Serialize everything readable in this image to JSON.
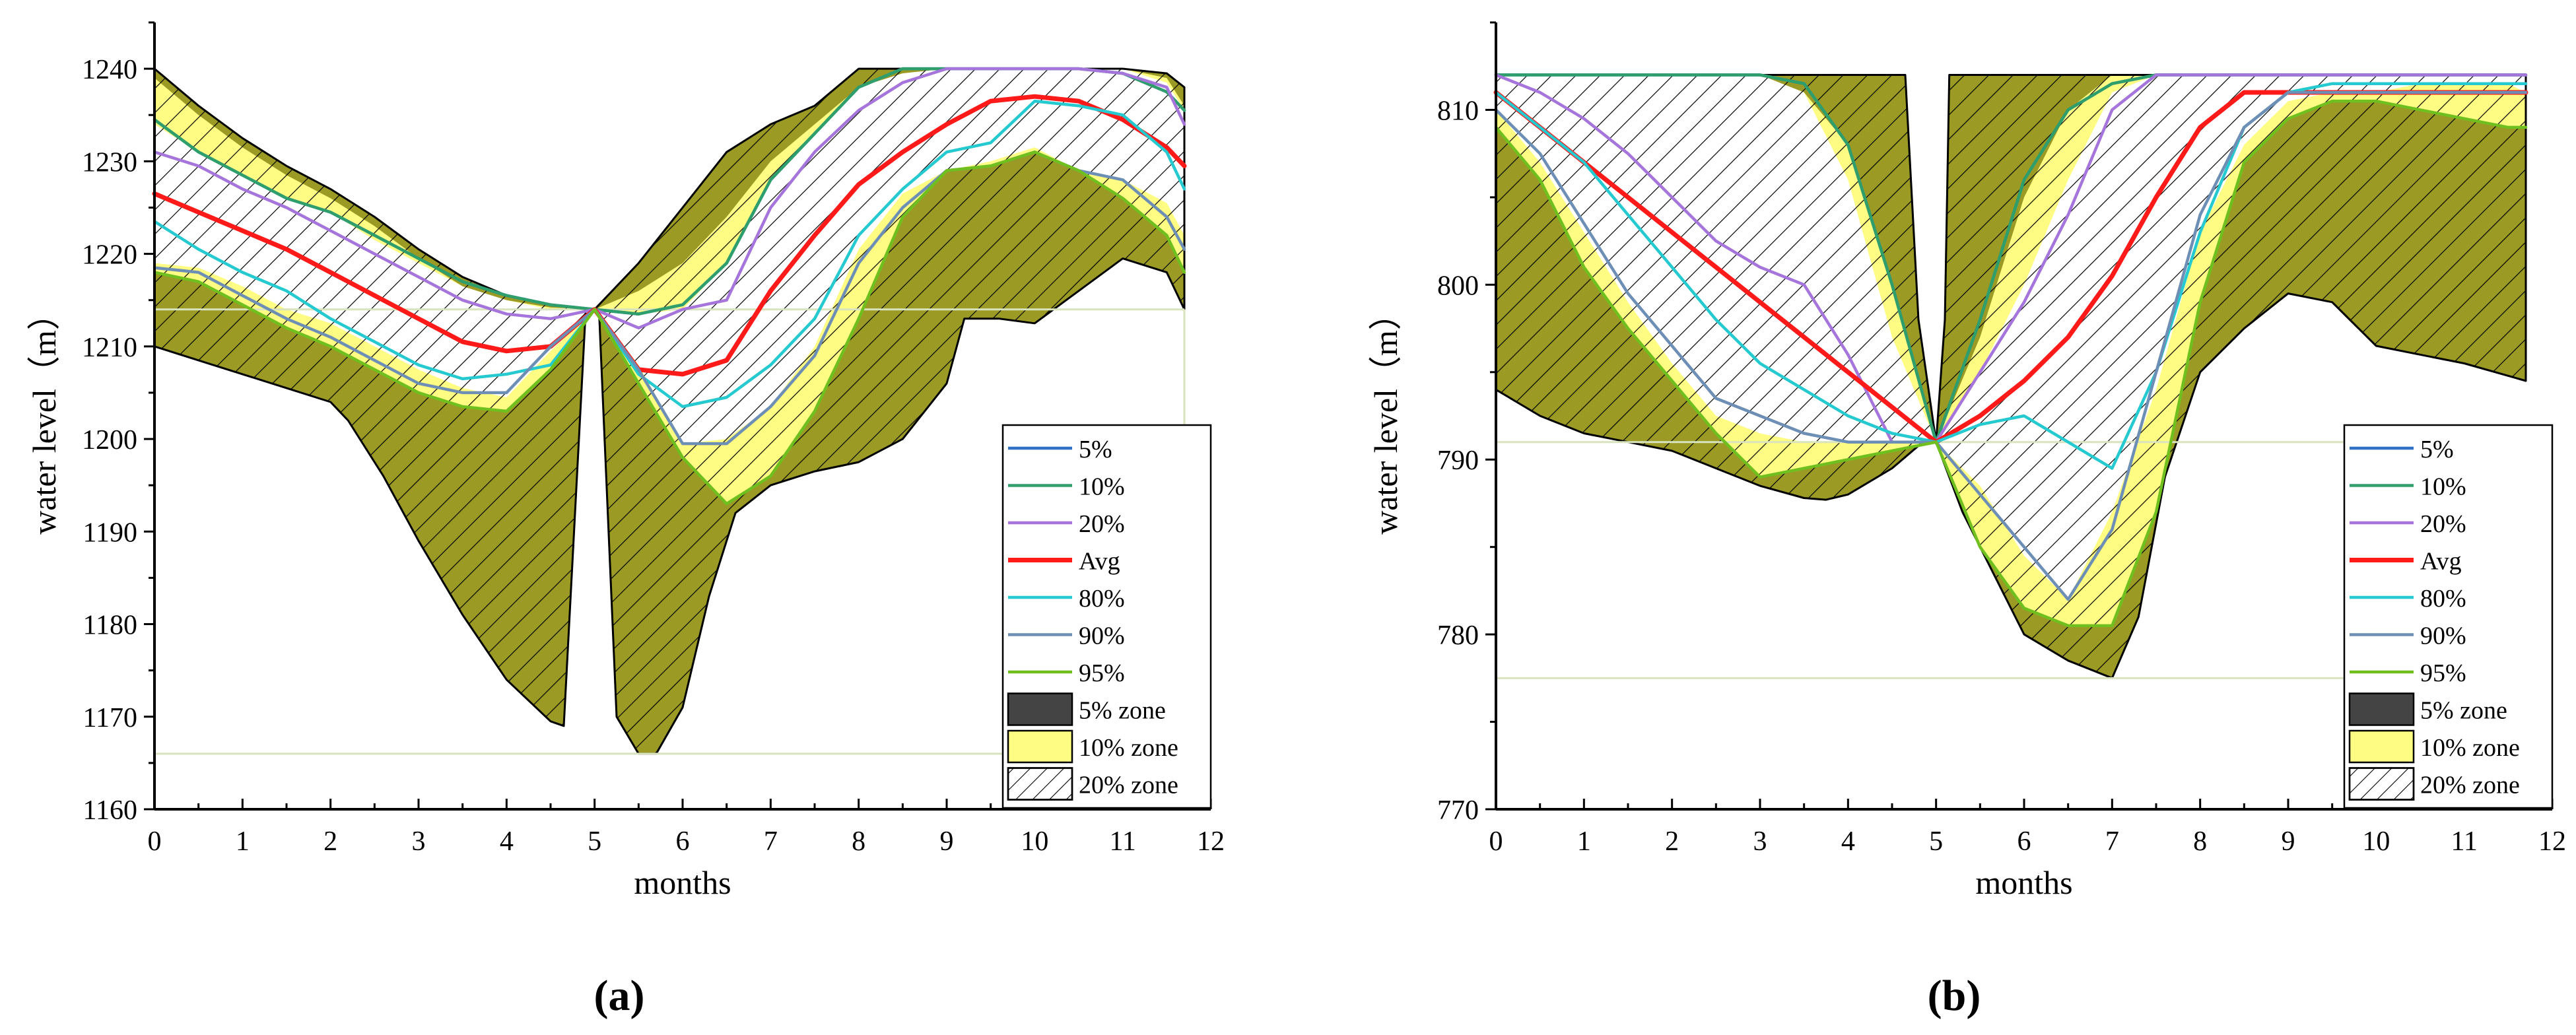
{
  "figure": {
    "panel_labels": [
      "(a)",
      "(b)"
    ]
  },
  "colors": {
    "p5": "#2f6fc4",
    "p10": "#2e9e6b",
    "p20": "#a675dc",
    "avg": "#ff1a1a",
    "p80": "#25c9d0",
    "p90": "#6e8fb5",
    "p95": "#6fbf1f",
    "zone5": "#9a9a25",
    "zone10": "#fefc82",
    "zone20": "#ffffff",
    "guide": "#d9e3bd"
  },
  "chart_data": [
    {
      "type": "line",
      "panel": "(a)",
      "xlabel": "months",
      "ylabel": "water level（m）",
      "xlim": [
        0,
        12
      ],
      "ylim": [
        1160,
        1245
      ],
      "xticks": [
        "0",
        "1",
        "2",
        "3",
        "4",
        "5",
        "6",
        "7",
        "8",
        "9",
        "10",
        "11",
        "12"
      ],
      "yticks": [
        "1160",
        "1170",
        "1180",
        "1190",
        "1200",
        "1210",
        "1220",
        "1230",
        "1240"
      ],
      "x": [
        0,
        0.5,
        1,
        1.5,
        2,
        2.5,
        3,
        3.5,
        4,
        4.5,
        5,
        5.5,
        6,
        6.5,
        7,
        7.5,
        8,
        8.5,
        9,
        9.5,
        10,
        10.5,
        11,
        11.5,
        11.7
      ],
      "zone5": {
        "upper_x": [
          0,
          0.5,
          1,
          1.5,
          2,
          2.5,
          3,
          3.5,
          4,
          4.5,
          5,
          5.5,
          6,
          6.5,
          7,
          7.5,
          8,
          8.5,
          9,
          9.5,
          10,
          10.5,
          11,
          11.5,
          11.7
        ],
        "upper_y": [
          1240,
          1236,
          1232.5,
          1229.5,
          1227,
          1224,
          1220.5,
          1217.5,
          1215.5,
          1214.5,
          1214,
          1219,
          1225,
          1231,
          1234,
          1236,
          1240,
          1240,
          1240,
          1240,
          1240,
          1240,
          1240,
          1239.5,
          1238
        ],
        "lower_x": [
          0,
          0.5,
          1,
          1.5,
          2,
          2.2,
          2.6,
          3,
          3.5,
          4,
          4.5,
          4.65,
          4.9,
          5.05,
          5.25,
          5.5,
          5.7,
          6,
          6.3,
          6.6,
          7,
          7.5,
          8,
          8.5,
          9,
          9.2,
          9.6,
          10,
          10.5,
          11,
          11.5,
          11.7
        ],
        "lower_y": [
          1210,
          1208.5,
          1207,
          1205.5,
          1204,
          1202,
          1196,
          1189,
          1181,
          1174,
          1169.5,
          1169,
          1214,
          1214,
          1170,
          1166,
          1166,
          1171,
          1183,
          1192,
          1195,
          1196.5,
          1197.5,
          1200,
          1206,
          1213,
          1213,
          1212.5,
          1216,
          1219.5,
          1218,
          1214
        ]
      },
      "zone10": {
        "upper": [
          1239,
          1235,
          1231.5,
          1228.5,
          1226,
          1223,
          1219.5,
          1216.5,
          1215,
          1214.2,
          1214,
          1216,
          1219,
          1224,
          1230,
          1234,
          1238,
          1239.5,
          1240,
          1240,
          1240,
          1240,
          1240,
          1239,
          1236
        ],
        "lower": [
          1218,
          1217,
          1214.5,
          1212,
          1210,
          1207.5,
          1205,
          1203.5,
          1203,
          1207.5,
          1214,
          1206,
          1198,
          1193,
          1196,
          1203,
          1213,
          1224,
          1229,
          1229.5,
          1231,
          1229,
          1226,
          1222,
          1218
        ]
      },
      "zone20": {
        "upper": [
          1234,
          1231,
          1228.5,
          1226,
          1224.5,
          1221.5,
          1219,
          1216.5,
          1215,
          1214,
          1214,
          1213.5,
          1214,
          1219,
          1228,
          1233,
          1238,
          1239.5,
          1240,
          1240,
          1240,
          1240,
          1240,
          1238.5,
          1235.5
        ],
        "lower": [
          1219,
          1218.5,
          1216.5,
          1214,
          1212.5,
          1210,
          1207.5,
          1205.5,
          1204.5,
          1209.5,
          1214,
          1208,
          1199.5,
          1200,
          1203.5,
          1210,
          1220.5,
          1226.5,
          1229,
          1230,
          1231.5,
          1229,
          1228,
          1225.5,
          1222
        ]
      },
      "series": [
        {
          "name": "5%",
          "key": "p5",
          "values": [
            1234.5,
            1231,
            1228.5,
            1226,
            1224.5,
            1222,
            1219.5,
            1217,
            1215.5,
            1214.5,
            1214,
            1213.5,
            1214.5,
            1219,
            1228,
            1233,
            1238,
            1240,
            1240,
            1240,
            1240,
            1240,
            1239.5,
            1237.5,
            1235.5
          ]
        },
        {
          "name": "10%",
          "key": "p10",
          "values": [
            1234.5,
            1231,
            1228.5,
            1226,
            1224.5,
            1222,
            1219.5,
            1217,
            1215.5,
            1214.5,
            1214,
            1213.5,
            1214.5,
            1219,
            1228,
            1233,
            1238,
            1240,
            1240,
            1240,
            1240,
            1240,
            1239.5,
            1237.5,
            1235.5
          ]
        },
        {
          "name": "20%",
          "key": "p20",
          "values": [
            1231,
            1229.5,
            1227,
            1225,
            1222.5,
            1220,
            1217.5,
            1215,
            1213.5,
            1213,
            1214,
            1212,
            1214,
            1215,
            1225,
            1231,
            1235.5,
            1238.5,
            1240,
            1240,
            1240,
            1240,
            1239.5,
            1238,
            1234
          ]
        },
        {
          "name": "Avg",
          "key": "avg",
          "values": [
            1226.5,
            1224.5,
            1222.5,
            1220.5,
            1218,
            1215.5,
            1213,
            1210.5,
            1209.5,
            1210,
            1214,
            1207.5,
            1207,
            1208.5,
            1216,
            1222,
            1227.5,
            1231,
            1234,
            1236.5,
            1237,
            1236.5,
            1234.5,
            1231.5,
            1229.5
          ]
        },
        {
          "name": "80%",
          "key": "p80",
          "values": [
            1223.5,
            1220.5,
            1218,
            1216,
            1213,
            1210.5,
            1208,
            1206.5,
            1207,
            1208,
            1214,
            1207,
            1203.5,
            1204.5,
            1208,
            1213,
            1222,
            1227,
            1231,
            1232,
            1236.5,
            1236,
            1235,
            1231,
            1227
          ]
        },
        {
          "name": "90%",
          "key": "p90",
          "values": [
            1218.5,
            1218,
            1215.5,
            1213,
            1211,
            1208.5,
            1206,
            1205,
            1205,
            1210,
            1214,
            1207.5,
            1199.5,
            1199.5,
            1203.5,
            1209,
            1219,
            1225,
            1229,
            1229.5,
            1231,
            1229,
            1228,
            1224,
            1220.5
          ]
        },
        {
          "name": "95%",
          "key": "p95",
          "values": [
            1218,
            1217,
            1214.5,
            1212,
            1210,
            1207.5,
            1205,
            1203.5,
            1203,
            1207.5,
            1214,
            1206,
            1198,
            1193,
            1196,
            1203,
            1213,
            1224,
            1229,
            1229.5,
            1231,
            1229,
            1226,
            1222,
            1218
          ]
        }
      ],
      "reference_lines": {
        "y": [
          1214,
          1166
        ],
        "x": [
          11.7
        ]
      },
      "legend": [
        "5%",
        "10%",
        "20%",
        "Avg",
        "80%",
        "90%",
        "95%",
        "5% zone",
        "10% zone",
        "20% zone"
      ],
      "legend_position": "bottom-right"
    },
    {
      "type": "line",
      "panel": "(b)",
      "xlabel": "months",
      "ylabel": "water level（m）",
      "xlim": [
        0,
        12
      ],
      "ylim": [
        770,
        815
      ],
      "xticks": [
        "0",
        "1",
        "2",
        "3",
        "4",
        "5",
        "6",
        "7",
        "8",
        "9",
        "10",
        "11",
        "12"
      ],
      "yticks": [
        "770",
        "780",
        "790",
        "800",
        "810"
      ],
      "x": [
        0,
        0.5,
        1,
        1.5,
        2,
        2.5,
        3,
        3.5,
        4,
        4.5,
        5,
        5.5,
        6,
        6.5,
        7,
        7.5,
        8,
        8.5,
        9,
        9.5,
        10,
        10.5,
        11,
        11.5,
        11.7
      ],
      "zone5": {
        "upper_x": [
          0,
          1,
          2,
          3,
          4,
          4.5,
          4.65,
          4.8,
          5.0,
          5.1,
          5.15,
          5.5,
          6,
          6.5,
          7,
          7.5,
          8,
          8.5,
          9,
          10,
          11,
          11.7
        ],
        "upper_y": [
          812,
          812,
          812,
          812,
          812,
          812,
          812,
          798,
          791,
          798,
          812,
          812,
          812,
          812,
          812,
          812,
          812,
          812,
          812,
          812,
          812,
          812
        ],
        "lower_x": [
          0,
          0.5,
          1,
          1.5,
          2,
          2.5,
          3,
          3.5,
          3.75,
          4,
          4.5,
          4.85,
          5,
          5.3,
          5.6,
          6,
          6.5,
          7,
          7.3,
          7.6,
          8,
          8.5,
          9,
          9.5,
          10,
          10.5,
          11,
          11.7
        ],
        "lower_y": [
          794,
          792.5,
          791.5,
          791,
          790.5,
          789.5,
          788.5,
          787.8,
          787.7,
          788,
          789.5,
          791,
          791,
          787,
          784,
          780,
          778.5,
          777.5,
          781,
          789,
          795,
          797.5,
          799.5,
          799,
          796.5,
          796,
          795.5,
          794.5
        ]
      },
      "zone10": {
        "upper": [
          812,
          812,
          812,
          812,
          812,
          812,
          812,
          811,
          808,
          800,
          791,
          797,
          805,
          810,
          812,
          812,
          812,
          812,
          812,
          812,
          812,
          812,
          812,
          812,
          812
        ],
        "lower": [
          809,
          806,
          801,
          797.5,
          794.5,
          791.5,
          789,
          789.5,
          790,
          790.5,
          791,
          785,
          781.5,
          780.5,
          780.5,
          787,
          799,
          807,
          809.5,
          810.5,
          810.5,
          810,
          809.5,
          809,
          809
        ]
      },
      "zone20": {
        "upper": [
          812,
          812,
          812,
          812,
          812,
          812,
          812,
          811,
          806,
          797,
          791,
          795,
          800,
          806,
          811,
          812,
          812,
          812,
          812,
          812,
          812,
          812,
          812,
          812,
          812
        ],
        "lower": [
          810,
          807,
          803,
          799,
          795.5,
          792.5,
          791.5,
          791,
          791,
          791,
          791,
          788.5,
          784.5,
          782,
          787,
          794,
          803,
          808,
          810.5,
          811,
          811,
          811.5,
          811.5,
          811.5,
          811
        ]
      },
      "series": [
        {
          "name": "5%",
          "key": "p5",
          "values": [
            812,
            812,
            812,
            812,
            812,
            812,
            812,
            811.5,
            808,
            800,
            791,
            798,
            806,
            810,
            811.5,
            812,
            812,
            812,
            812,
            812,
            812,
            812,
            812,
            812,
            812
          ]
        },
        {
          "name": "10%",
          "key": "p10",
          "values": [
            812,
            812,
            812,
            812,
            812,
            812,
            812,
            811.5,
            808,
            800,
            791,
            798,
            806,
            810,
            811.5,
            812,
            812,
            812,
            812,
            812,
            812,
            812,
            812,
            812,
            812
          ]
        },
        {
          "name": "20%",
          "key": "p20",
          "values": [
            812,
            811,
            809.5,
            807.5,
            805,
            802.5,
            801,
            800,
            796,
            791,
            791,
            795,
            799,
            804,
            810,
            812,
            812,
            812,
            812,
            812,
            812,
            812,
            812,
            812,
            812
          ]
        },
        {
          "name": "Avg",
          "key": "avg",
          "values": [
            811,
            809,
            807,
            805,
            803,
            801,
            799,
            797,
            795,
            793,
            791,
            792.5,
            794.5,
            797,
            800.5,
            805,
            809,
            811,
            811,
            811,
            811,
            811,
            811,
            811,
            811
          ]
        },
        {
          "name": "80%",
          "key": "p80",
          "values": [
            811,
            809,
            807,
            804,
            801,
            798,
            795.5,
            794,
            792.5,
            791.5,
            791,
            792,
            792.5,
            791,
            789.5,
            795,
            803,
            809,
            811,
            811.5,
            811.5,
            811.5,
            811.5,
            811.5,
            811.5
          ]
        },
        {
          "name": "90%",
          "key": "p90",
          "values": [
            810,
            807.5,
            803.5,
            799.5,
            796.5,
            793.5,
            792.5,
            791.5,
            791,
            791,
            791,
            788,
            785,
            782,
            786,
            795,
            804,
            809,
            811,
            811,
            811,
            811,
            811,
            811,
            811
          ]
        },
        {
          "name": "95%",
          "key": "p95",
          "values": [
            809,
            806,
            801,
            797.5,
            794.5,
            791.5,
            789,
            789.5,
            790,
            790.5,
            791,
            785,
            781.5,
            780.5,
            780.5,
            787,
            799,
            807,
            809.5,
            810.5,
            810.5,
            810,
            809.5,
            809,
            809
          ]
        }
      ],
      "reference_lines": {
        "y": [
          791,
          777.5
        ],
        "x": [
          11.7
        ]
      },
      "legend": [
        "5%",
        "10%",
        "20%",
        "Avg",
        "80%",
        "90%",
        "95%",
        "5% zone",
        "10% zone",
        "20% zone"
      ],
      "legend_position": "bottom-right"
    }
  ]
}
